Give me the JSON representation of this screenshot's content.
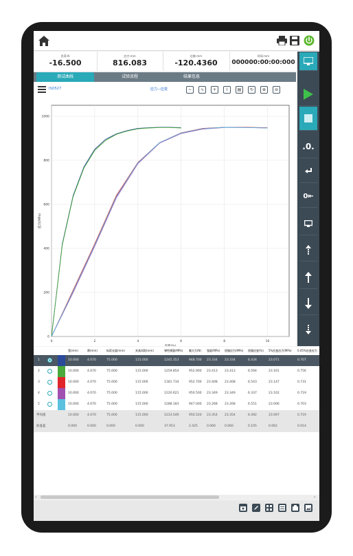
{
  "readouts": [
    {
      "label": "负荷-N",
      "value": "-16.500"
    },
    {
      "label": "应力-mm",
      "value": "816.083"
    },
    {
      "label": "位移-mm",
      "value": "-120.4360"
    },
    {
      "label": "时间-mm",
      "value": "000000:00:00:000"
    }
  ],
  "tabs": [
    "测试曲线",
    "试验流程",
    "结果信息"
  ],
  "toolbar": {
    "standard": "ISO527",
    "curve_mode": "应力—应变"
  },
  "chart_data": {
    "type": "line",
    "title": "",
    "xlabel": "应变(%)",
    "ylabel": "应力(MPa)",
    "xlim": [
      0,
      11
    ],
    "ylim": [
      0,
      1050
    ],
    "x_ticks": [
      0,
      2,
      4,
      6,
      8,
      10
    ],
    "y_ticks": [
      0,
      200,
      400,
      600,
      800,
      1000
    ],
    "grid": true,
    "series": [
      {
        "color": "#2b4a9a",
        "points": [
          [
            0,
            0
          ],
          [
            0.5,
            420
          ],
          [
            1,
            640
          ],
          [
            1.5,
            770
          ],
          [
            2,
            850
          ],
          [
            2.5,
            895
          ],
          [
            3,
            920
          ],
          [
            3.5,
            935
          ],
          [
            4,
            945
          ],
          [
            4.5,
            948
          ],
          [
            5,
            950
          ],
          [
            5.5,
            950
          ],
          [
            6,
            948
          ]
        ]
      },
      {
        "color": "#4aaa3c",
        "points": [
          [
            0,
            0
          ],
          [
            0.5,
            415
          ],
          [
            1,
            635
          ],
          [
            1.5,
            765
          ],
          [
            2,
            845
          ],
          [
            2.5,
            890
          ],
          [
            3,
            918
          ],
          [
            3.5,
            933
          ],
          [
            4,
            943
          ],
          [
            4.5,
            947
          ],
          [
            5,
            949
          ],
          [
            5.5,
            949
          ],
          [
            6,
            947
          ]
        ]
      },
      {
        "color": "#d8282c",
        "points": [
          [
            0,
            0
          ],
          [
            1,
            210
          ],
          [
            2,
            420
          ],
          [
            3,
            640
          ],
          [
            4,
            790
          ],
          [
            5,
            880
          ],
          [
            6,
            925
          ],
          [
            7,
            945
          ],
          [
            8,
            950
          ],
          [
            9,
            950
          ],
          [
            10,
            948
          ]
        ]
      },
      {
        "color": "#a14fb0",
        "points": [
          [
            0,
            0
          ],
          [
            1,
            200
          ],
          [
            2,
            410
          ],
          [
            3,
            630
          ],
          [
            4,
            785
          ],
          [
            5,
            878
          ],
          [
            6,
            922
          ],
          [
            7,
            942
          ],
          [
            8,
            949
          ],
          [
            9,
            949
          ],
          [
            10,
            947
          ]
        ]
      },
      {
        "color": "#5bbbe0",
        "points": [
          [
            0,
            0
          ],
          [
            1,
            205
          ],
          [
            2,
            415
          ],
          [
            3,
            635
          ],
          [
            4,
            788
          ],
          [
            5,
            880
          ],
          [
            6,
            924
          ],
          [
            7,
            944
          ],
          [
            8,
            950
          ],
          [
            9,
            949
          ],
          [
            10,
            947
          ]
        ]
      }
    ]
  },
  "table": {
    "headers": [
      "宽(mm)",
      "厚(mm)",
      "标距长度(mm)",
      "夹具间距(mm)",
      "弹性模量(MPa)",
      "最大力(N)",
      "强度(MPa)",
      "屈服应力(MPa)",
      "屈服应变(%)",
      "5%应变应力(MPa)",
      "0.05%应变应力"
    ],
    "rows": [
      {
        "index": "1",
        "color": "#2b4a9a",
        "selected": true,
        "cells": [
          "10.000",
          "4.070",
          "75.000",
          "115.000",
          "1245.353",
          "948.700",
          "23.334",
          "23.334",
          "6.434",
          "23.071",
          "0.707"
        ]
      },
      {
        "index": "2",
        "color": "#4aaa3c",
        "selected": false,
        "cells": [
          "10.000",
          "4.070",
          "75.000",
          "115.000",
          "1259.854",
          "952.900",
          "23.413",
          "23.413",
          "6.594",
          "23.161",
          "0.756"
        ]
      },
      {
        "index": "3",
        "color": "#e0262b",
        "selected": false,
        "cells": [
          "10.000",
          "4.070",
          "75.000",
          "115.000",
          "1181.734",
          "952.700",
          "23.408",
          "23.408",
          "6.543",
          "23.147",
          "0.731"
        ]
      },
      {
        "index": "4",
        "color": "#a14fb0",
        "selected": false,
        "cells": [
          "10.000",
          "4.070",
          "75.000",
          "115.000",
          "1220.621",
          "950.500",
          "23.349",
          "23.349",
          "6.337",
          "23.102",
          "0.719"
        ]
      },
      {
        "index": "5",
        "color": "#5bc1df",
        "selected": false,
        "cells": [
          "10.000",
          "4.070",
          "75.000",
          "115.000",
          "1288.183",
          "947.000",
          "23.268",
          "23.268",
          "6.551",
          "23.006",
          "0.703"
        ]
      }
    ],
    "stats": [
      {
        "label": "平均值",
        "cells": [
          "10.000",
          "4.070",
          "75.000",
          "115.000",
          "1233.549",
          "950.520",
          "23.354",
          "23.354",
          "6.492",
          "23.097",
          "0.719"
        ]
      },
      {
        "label": "标准差",
        "cells": [
          "0.000",
          "0.000",
          "0.000",
          "0.000",
          "37.953",
          "2.425",
          "0.060",
          "0.060",
          "0.105",
          "0.062",
          "0.014"
        ]
      }
    ]
  },
  "right_buttons": [
    "display",
    "start",
    "stop",
    ".0.",
    "return",
    "0-clear",
    "window",
    "jog-up-fast",
    "up",
    "down",
    "jog-down-fast"
  ],
  "right_labels": {
    "zero": ".0.",
    "clear": "0⇤"
  },
  "colors": {
    "accent": "#2aa9b8",
    "start": "#3ec14b",
    "dark": "#3c4a55"
  }
}
